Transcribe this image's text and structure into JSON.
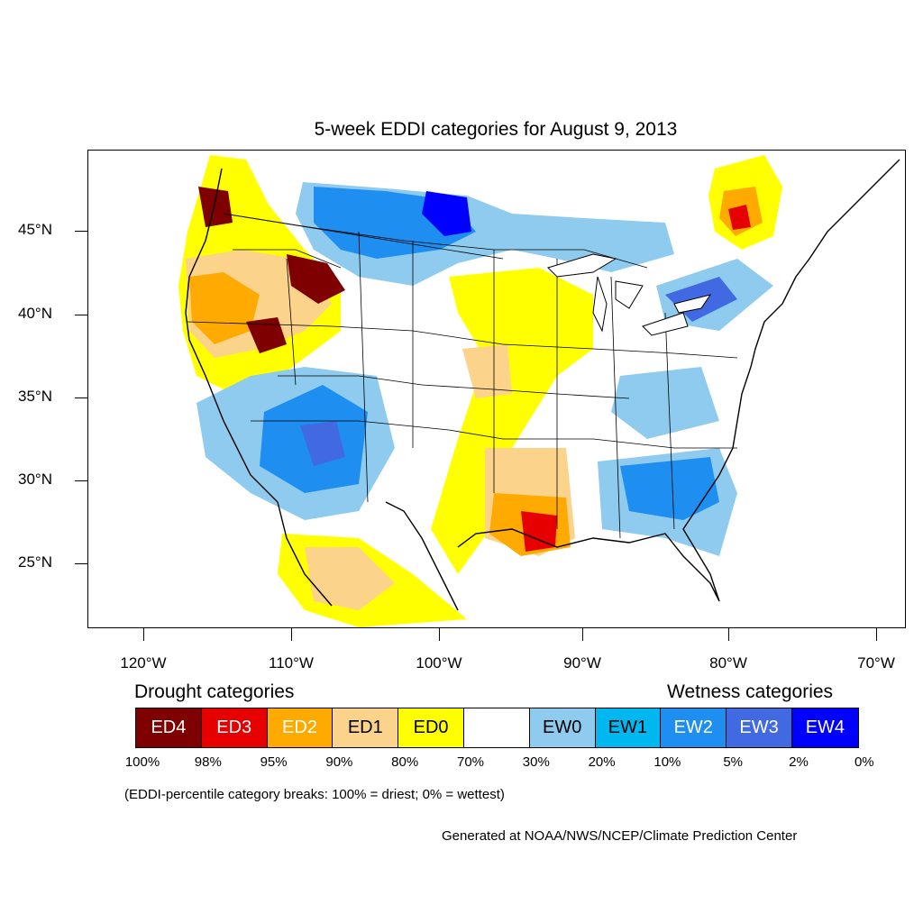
{
  "title": "5-week EDDI categories for August 9, 2013",
  "lat_labels": [
    "45°N",
    "40°N",
    "35°N",
    "30°N",
    "25°N"
  ],
  "lon_labels": [
    "120°W",
    "110°W",
    "100°W",
    "90°W",
    "80°W",
    "70°W"
  ],
  "legend": {
    "drought_heading": "Drought categories",
    "wetness_heading": "Wetness categories",
    "categories": [
      {
        "label": "ED4",
        "color": "#7f0000",
        "text_color": "#ffffff"
      },
      {
        "label": "ED3",
        "color": "#e60000",
        "text_color": "#ffffff"
      },
      {
        "label": "ED2",
        "color": "#ffaa00",
        "text_color": "#ffffff"
      },
      {
        "label": "ED1",
        "color": "#fcd38b",
        "text_color": "#000000"
      },
      {
        "label": "ED0",
        "color": "#ffff00",
        "text_color": "#000000"
      },
      {
        "label": "",
        "color": "#ffffff",
        "text_color": "#000000"
      },
      {
        "label": "EW0",
        "color": "#8ecbee",
        "text_color": "#000000"
      },
      {
        "label": "EW1",
        "color": "#00b7ef",
        "text_color": "#000000"
      },
      {
        "label": "EW2",
        "color": "#1e8ff0",
        "text_color": "#ffffff"
      },
      {
        "label": "EW3",
        "color": "#4169e1",
        "text_color": "#ffffff"
      },
      {
        "label": "EW4",
        "color": "#0000ff",
        "text_color": "#ffffff"
      }
    ],
    "breaks": [
      "100%",
      "98%",
      "95%",
      "90%",
      "80%",
      "70%",
      "30%",
      "20%",
      "10%",
      "5%",
      "2%",
      "0%"
    ]
  },
  "note": "(EDDI-percentile category breaks: 100% = driest; 0% = wettest)",
  "credit": "Generated at NOAA/NWS/NCEP/Climate Prediction Center"
}
